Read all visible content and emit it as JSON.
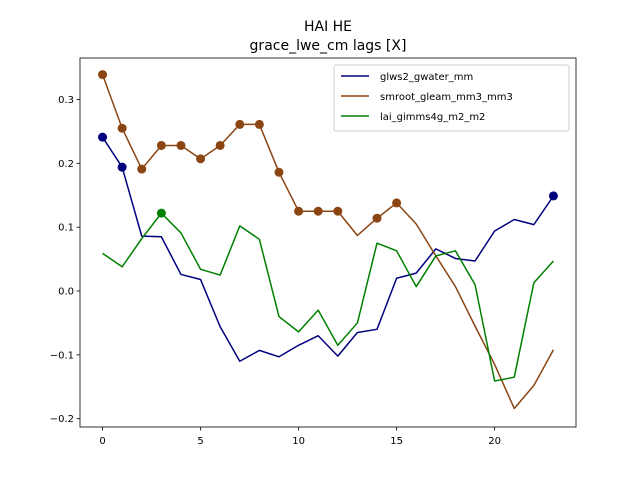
{
  "chart_data": {
    "type": "line",
    "title": "HAI HE",
    "subtitle": "grace_lwe_cm lags [X]",
    "xlabel": "",
    "ylabel": "",
    "xlim": [
      -1.15,
      24.15
    ],
    "ylim": [
      -0.213,
      0.365
    ],
    "xticks": [
      0,
      5,
      10,
      15,
      20
    ],
    "yticks": [
      -0.2,
      -0.1,
      0.0,
      0.1,
      0.2,
      0.3
    ],
    "ytick_labels": [
      "−0.2",
      "−0.1",
      "0.0",
      "0.1",
      "0.2",
      "0.3"
    ],
    "grid": false,
    "legend_position": "top-right",
    "x": [
      0,
      1,
      2,
      3,
      4,
      5,
      6,
      7,
      8,
      9,
      10,
      11,
      12,
      13,
      14,
      15,
      16,
      17,
      18,
      19,
      20,
      21,
      22,
      23
    ],
    "series": [
      {
        "name": "glws2_gwater_mm",
        "color": "#00007f",
        "values": [
          0.241,
          0.194,
          0.086,
          0.085,
          0.026,
          0.018,
          -0.056,
          -0.11,
          -0.093,
          -0.103,
          -0.085,
          -0.07,
          -0.102,
          -0.065,
          -0.06,
          0.02,
          0.028,
          0.066,
          0.051,
          0.047,
          0.094,
          0.112,
          0.104,
          0.149
        ],
        "markers": [
          0,
          1,
          23
        ]
      },
      {
        "name": "smroot_gleam_mm3_mm3",
        "color": "#8b4513",
        "values": [
          0.339,
          0.255,
          0.191,
          0.228,
          0.228,
          0.207,
          0.228,
          0.261,
          0.261,
          0.186,
          0.125,
          0.125,
          0.125,
          0.087,
          0.114,
          0.138,
          0.105,
          0.055,
          0.007,
          -0.055,
          -0.115,
          -0.184,
          -0.148,
          -0.092
        ],
        "markers": [
          0,
          1,
          2,
          3,
          4,
          5,
          6,
          7,
          8,
          9,
          10,
          11,
          12,
          14,
          15
        ]
      },
      {
        "name": "lai_gimms4g_m2_m2",
        "color": "#007f00",
        "values": [
          0.059,
          0.038,
          0.082,
          0.122,
          0.091,
          0.034,
          0.025,
          0.102,
          0.081,
          -0.04,
          -0.064,
          -0.03,
          -0.085,
          -0.05,
          0.075,
          0.063,
          0.007,
          0.055,
          0.063,
          0.01,
          -0.141,
          -0.135,
          0.013,
          0.047
        ],
        "markers": [
          3
        ]
      }
    ]
  }
}
